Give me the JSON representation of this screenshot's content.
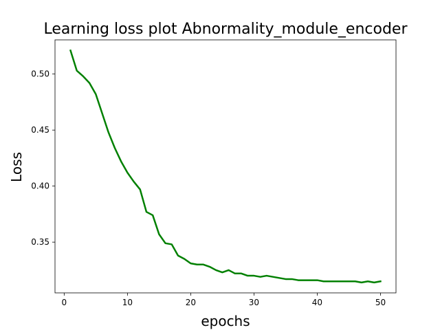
{
  "chart_data": {
    "type": "line",
    "title": "Learning loss plot Abnormality_module_encoder",
    "xlabel": "epochs",
    "ylabel": "Loss",
    "xlim": [
      -1.45,
      52.45
    ],
    "ylim": [
      0.3047,
      0.5305
    ],
    "xticks": [
      0,
      10,
      20,
      30,
      40,
      50
    ],
    "yticks": [
      0.35,
      0.4,
      0.45,
      0.5
    ],
    "xtick_labels": [
      "0",
      "10",
      "20",
      "30",
      "40",
      "50"
    ],
    "ytick_labels": [
      "0.35",
      "0.40",
      "0.45",
      "0.50"
    ],
    "grid": false,
    "series": [
      {
        "color": "#008000",
        "x": [
          1,
          2,
          3,
          4,
          5,
          6,
          7,
          8,
          9,
          10,
          11,
          12,
          13,
          14,
          15,
          16,
          17,
          18,
          19,
          20,
          21,
          22,
          23,
          24,
          25,
          26,
          27,
          28,
          29,
          30,
          31,
          32,
          33,
          34,
          35,
          36,
          37,
          38,
          39,
          40,
          41,
          42,
          43,
          44,
          45,
          46,
          47,
          48,
          49,
          50
        ],
        "y": [
          0.521,
          0.503,
          0.498,
          0.492,
          0.482,
          0.465,
          0.448,
          0.434,
          0.422,
          0.412,
          0.404,
          0.397,
          0.377,
          0.374,
          0.357,
          0.349,
          0.348,
          0.338,
          0.335,
          0.331,
          0.33,
          0.33,
          0.328,
          0.325,
          0.323,
          0.325,
          0.322,
          0.322,
          0.32,
          0.32,
          0.319,
          0.32,
          0.319,
          0.318,
          0.317,
          0.317,
          0.316,
          0.316,
          0.316,
          0.316,
          0.315,
          0.315,
          0.315,
          0.315,
          0.315,
          0.315,
          0.314,
          0.315,
          0.314,
          0.315
        ]
      }
    ]
  }
}
